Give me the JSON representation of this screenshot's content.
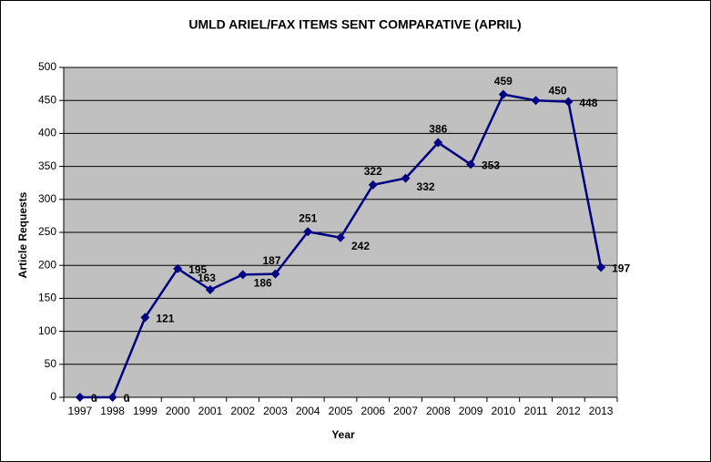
{
  "chart_data": {
    "type": "line",
    "title": "UMLD ARIEL/FAX ITEMS SENT COMPARATIVE (APRIL)",
    "x_label": "Year",
    "y_label": "Article Requests",
    "categories": [
      "1997",
      "1998",
      "1999",
      "2000",
      "2001",
      "2002",
      "2003",
      "2004",
      "2005",
      "2006",
      "2007",
      "2008",
      "2009",
      "2010",
      "2011",
      "2012",
      "2013"
    ],
    "series": [
      {
        "name": "Article Requests",
        "color": "#000080",
        "values": [
          0,
          0,
          121,
          195,
          163,
          186,
          187,
          251,
          242,
          322,
          332,
          386,
          353,
          459,
          450,
          448,
          197
        ]
      }
    ],
    "ylim": [
      0,
      500
    ],
    "yticks": [
      0,
      50,
      100,
      150,
      200,
      250,
      300,
      350,
      400,
      450,
      500
    ],
    "grid": true
  }
}
